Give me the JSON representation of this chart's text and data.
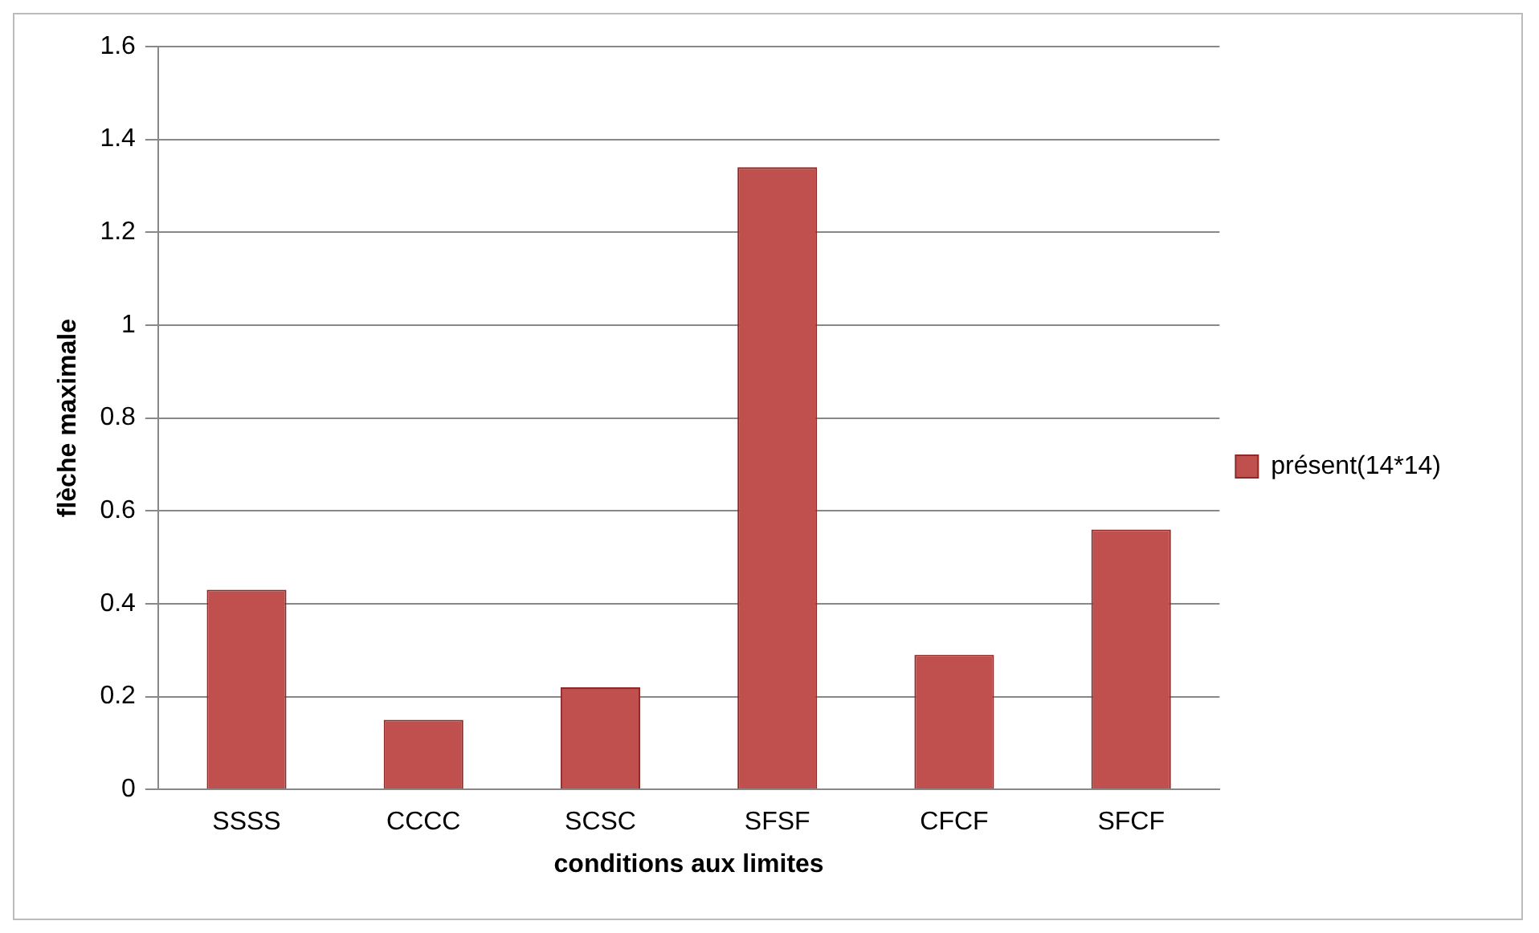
{
  "chart_data": {
    "type": "bar",
    "xlabel": "conditions aux limites",
    "ylabel": "flèche maximale",
    "categories": [
      "SSSS",
      "CCCC",
      "SCSC",
      "SFSF",
      "CFCF",
      "SFCF"
    ],
    "series": [
      {
        "name": "présent(14*14)",
        "color": "#c0504d",
        "values": [
          0.43,
          0.15,
          0.22,
          1.34,
          0.29,
          0.56
        ]
      }
    ],
    "ylim": [
      0,
      1.6
    ],
    "yticks": [
      0,
      0.2,
      0.4,
      0.6,
      0.8,
      1,
      1.2,
      1.4,
      1.6
    ],
    "grid": "y",
    "legend": "right"
  }
}
